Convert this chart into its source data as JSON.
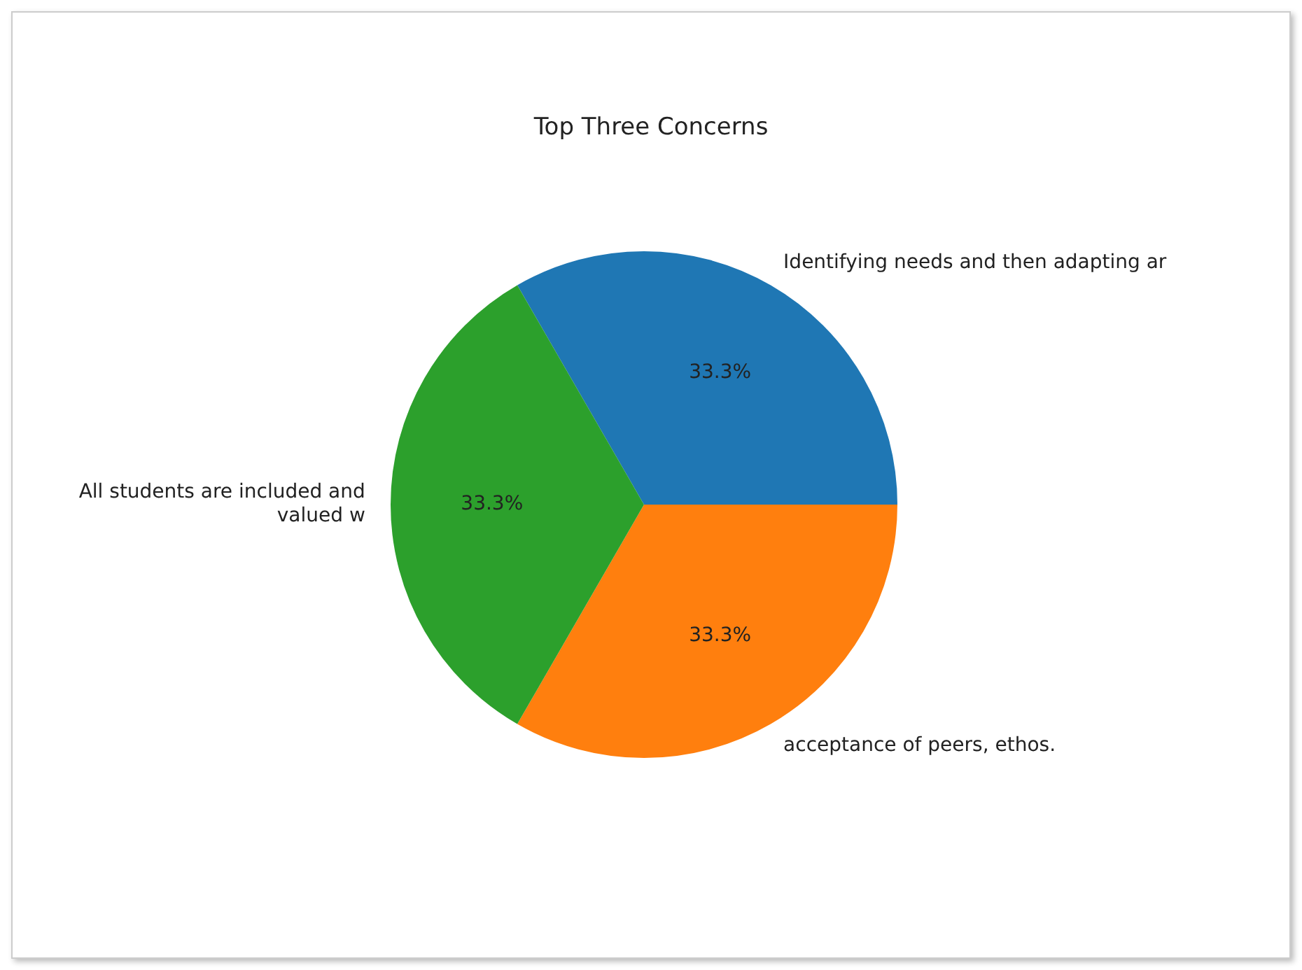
{
  "chart_data": {
    "type": "pie",
    "title": "Top Three Concerns",
    "categories": [
      "Identifying needs and then adapting ar",
      "acceptance of peers, ethos.",
      "All students are included and valued w"
    ],
    "values": [
      33.3,
      33.3,
      33.3
    ],
    "colors": [
      "#1f77b4",
      "#ff7f0e",
      "#2ca02c"
    ],
    "value_labels": [
      "33.3%",
      "33.3%",
      "33.3%"
    ],
    "legend": false
  }
}
